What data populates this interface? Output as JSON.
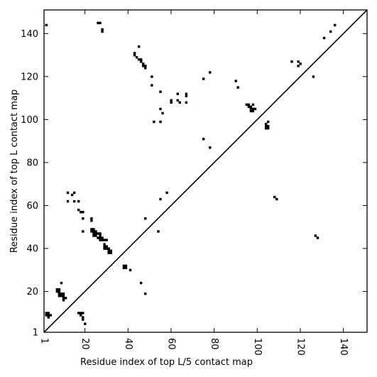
{
  "chart_data": {
    "type": "scatter",
    "title": "",
    "xlabel": "Residue index of top L/5 contact map",
    "ylabel": "Residue index of top L contact map",
    "xlim": [
      1,
      151
    ],
    "ylim": [
      1,
      151
    ],
    "xticks": [
      1,
      20,
      40,
      60,
      80,
      100,
      120,
      140
    ],
    "yticks": [
      1,
      20,
      40,
      60,
      80,
      100,
      120,
      140
    ],
    "grid": false,
    "marker": "square",
    "colors": {
      "marks": "#000000",
      "diagonal": "#000000",
      "background": "#ffffff"
    },
    "diagonal_line": {
      "from": [
        1,
        1
      ],
      "to": [
        151,
        151
      ]
    },
    "series": [
      {
        "points": [
          [
            26,
            145
          ],
          [
            27,
            145
          ],
          [
            28,
            142
          ],
          [
            28,
            141
          ],
          [
            43,
            131
          ],
          [
            43,
            130
          ],
          [
            44,
            129
          ],
          [
            45,
            128
          ],
          [
            46,
            128
          ],
          [
            46,
            127
          ],
          [
            47,
            126
          ],
          [
            47,
            125
          ],
          [
            48,
            125
          ],
          [
            48,
            124
          ],
          [
            45,
            134
          ],
          [
            51,
            120
          ],
          [
            51,
            116
          ],
          [
            55,
            113
          ],
          [
            55,
            105
          ],
          [
            56,
            103
          ],
          [
            52,
            99
          ],
          [
            55,
            99
          ],
          [
            60,
            109
          ],
          [
            60,
            108
          ],
          [
            63,
            112
          ],
          [
            63,
            109
          ],
          [
            64,
            108
          ],
          [
            67,
            112
          ],
          [
            67,
            111
          ],
          [
            67,
            108
          ],
          [
            75,
            119
          ],
          [
            78,
            122
          ],
          [
            75,
            91
          ],
          [
            78,
            87
          ],
          [
            90,
            118
          ],
          [
            91,
            115
          ],
          [
            95,
            107
          ],
          [
            96,
            107
          ],
          [
            96,
            106
          ],
          [
            97,
            106
          ],
          [
            97,
            105
          ],
          [
            97,
            104
          ],
          [
            98,
            107
          ],
          [
            98,
            105
          ],
          [
            98,
            104
          ],
          [
            99,
            105
          ],
          [
            104,
            98
          ],
          [
            104,
            97
          ],
          [
            104,
            96
          ],
          [
            105,
            97
          ],
          [
            105,
            96
          ],
          [
            105,
            99
          ],
          [
            108,
            64
          ],
          [
            109,
            63
          ],
          [
            116,
            127
          ],
          [
            119,
            127
          ],
          [
            119,
            125
          ],
          [
            120,
            126
          ],
          [
            126,
            120
          ],
          [
            127,
            46
          ],
          [
            128,
            45
          ],
          [
            131,
            138
          ],
          [
            134,
            141
          ],
          [
            136,
            144
          ],
          [
            2,
            144
          ],
          [
            2,
            10
          ],
          [
            2,
            9
          ],
          [
            3,
            10
          ],
          [
            3,
            9
          ],
          [
            3,
            8
          ],
          [
            4,
            9
          ],
          [
            7,
            21
          ],
          [
            7,
            20
          ],
          [
            8,
            21
          ],
          [
            8,
            20
          ],
          [
            8,
            19
          ],
          [
            8,
            18
          ],
          [
            9,
            19
          ],
          [
            9,
            18
          ],
          [
            10,
            19
          ],
          [
            10,
            18
          ],
          [
            10,
            17
          ],
          [
            10,
            16
          ],
          [
            11,
            17
          ],
          [
            9,
            24
          ],
          [
            17,
            10
          ],
          [
            18,
            10
          ],
          [
            18,
            9
          ],
          [
            19,
            8
          ],
          [
            19,
            7
          ],
          [
            20,
            5
          ],
          [
            19,
            10
          ],
          [
            12,
            66
          ],
          [
            12,
            62
          ],
          [
            14,
            65
          ],
          [
            15,
            66
          ],
          [
            15,
            62
          ],
          [
            17,
            62
          ],
          [
            17,
            58
          ],
          [
            18,
            57
          ],
          [
            19,
            57
          ],
          [
            19,
            54
          ],
          [
            19,
            48
          ],
          [
            23,
            54
          ],
          [
            23,
            53
          ],
          [
            23,
            49
          ],
          [
            23,
            48
          ],
          [
            24,
            49
          ],
          [
            24,
            48
          ],
          [
            24,
            47
          ],
          [
            24,
            46
          ],
          [
            25,
            48
          ],
          [
            25,
            47
          ],
          [
            25,
            46
          ],
          [
            26,
            47
          ],
          [
            26,
            45
          ],
          [
            27,
            47
          ],
          [
            27,
            46
          ],
          [
            27,
            45
          ],
          [
            27,
            44
          ],
          [
            28,
            45
          ],
          [
            28,
            44
          ],
          [
            29,
            44
          ],
          [
            29,
            42
          ],
          [
            29,
            41
          ],
          [
            29,
            40
          ],
          [
            30,
            44
          ],
          [
            30,
            41
          ],
          [
            30,
            40
          ],
          [
            31,
            40
          ],
          [
            31,
            39
          ],
          [
            31,
            38
          ],
          [
            32,
            39
          ],
          [
            32,
            38
          ],
          [
            38,
            32
          ],
          [
            38,
            31
          ],
          [
            39,
            32
          ],
          [
            39,
            31
          ],
          [
            41,
            30
          ],
          [
            46,
            24
          ],
          [
            48,
            19
          ],
          [
            48,
            54
          ],
          [
            54,
            48
          ],
          [
            55,
            63
          ],
          [
            58,
            66
          ]
        ]
      }
    ]
  }
}
